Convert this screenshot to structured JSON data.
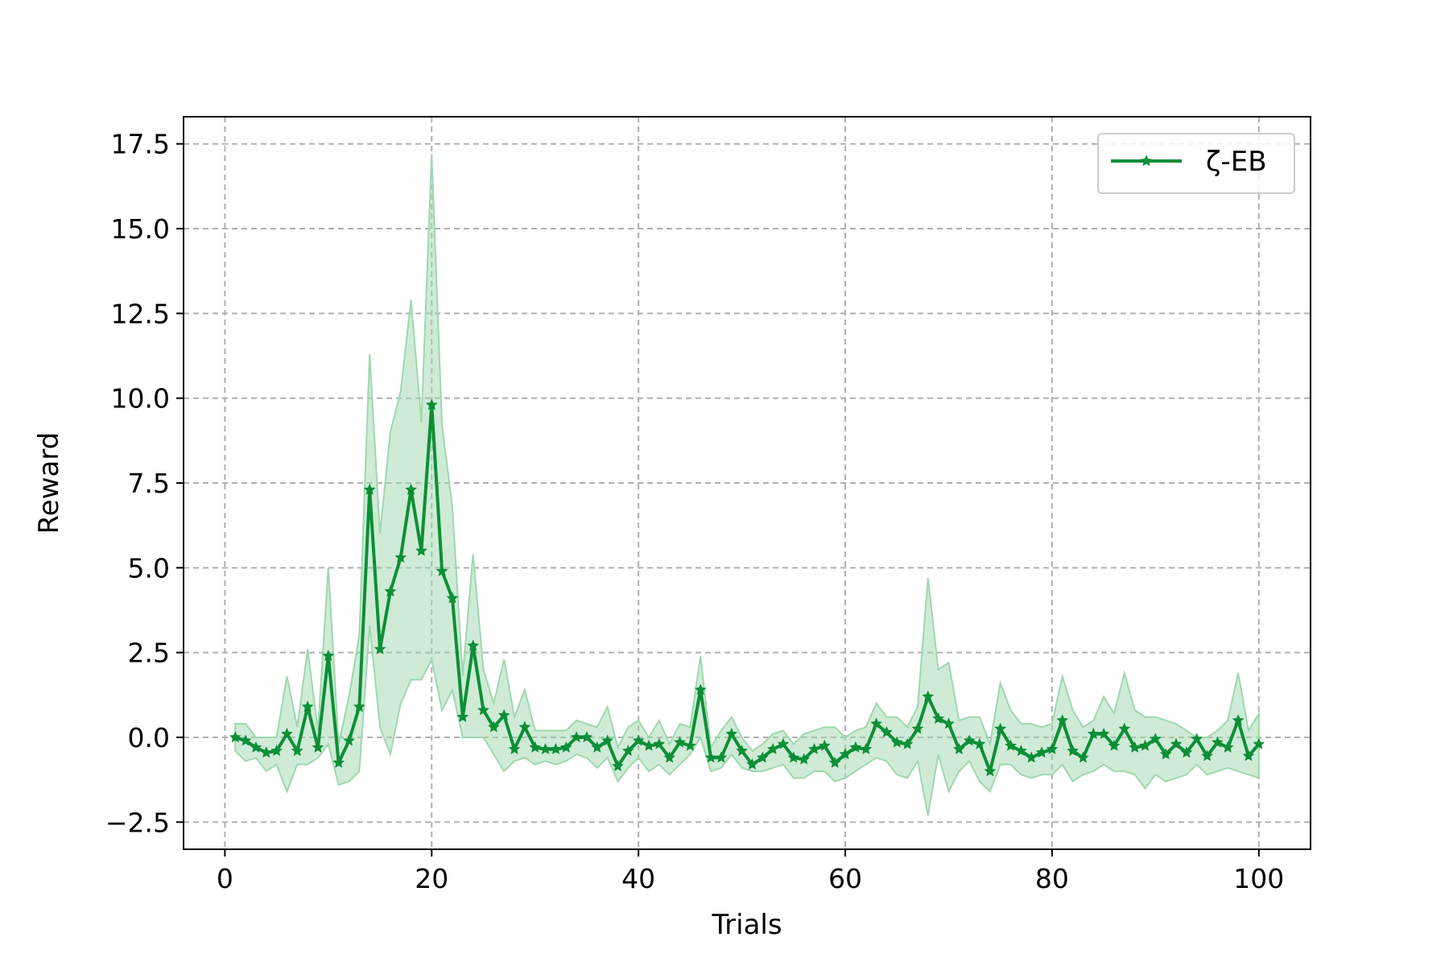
{
  "chart_data": {
    "type": "line",
    "title": "",
    "xlabel": "Trials",
    "ylabel": "Reward",
    "xlim": [
      -4,
      105
    ],
    "ylim": [
      -3.3,
      18.3
    ],
    "xticks": [
      0,
      20,
      40,
      60,
      80,
      100
    ],
    "xtick_labels": [
      "0",
      "20",
      "40",
      "60",
      "80",
      "100"
    ],
    "yticks": [
      -2.5,
      0.0,
      2.5,
      5.0,
      7.5,
      10.0,
      12.5,
      15.0,
      17.5
    ],
    "ytick_labels": [
      "−2.5",
      "0.0",
      "2.5",
      "5.0",
      "7.5",
      "10.0",
      "12.5",
      "15.0",
      "17.5"
    ],
    "grid": true,
    "legend_position": "top-right",
    "series": [
      {
        "name": "ζ-EB",
        "color": "#0c8f36",
        "band_color": "#9fd8ad",
        "marker": "star",
        "x": [
          1,
          2,
          3,
          4,
          5,
          6,
          7,
          8,
          9,
          10,
          11,
          12,
          13,
          14,
          15,
          16,
          17,
          18,
          19,
          20,
          21,
          22,
          23,
          24,
          25,
          26,
          27,
          28,
          29,
          30,
          31,
          32,
          33,
          34,
          35,
          36,
          37,
          38,
          39,
          40,
          41,
          42,
          43,
          44,
          45,
          46,
          47,
          48,
          49,
          50,
          51,
          52,
          53,
          54,
          55,
          56,
          57,
          58,
          59,
          60,
          61,
          62,
          63,
          64,
          65,
          66,
          67,
          68,
          69,
          70,
          71,
          72,
          73,
          74,
          75,
          76,
          77,
          78,
          79,
          80,
          81,
          82,
          83,
          84,
          85,
          86,
          87,
          88,
          89,
          90,
          91,
          92,
          93,
          94,
          95,
          96,
          97,
          98,
          99,
          100
        ],
        "y": [
          0.0,
          -0.1,
          -0.3,
          -0.45,
          -0.4,
          0.1,
          -0.4,
          0.9,
          -0.3,
          2.4,
          -0.75,
          -0.1,
          0.9,
          7.3,
          2.6,
          4.3,
          5.3,
          7.3,
          5.5,
          9.8,
          4.9,
          4.1,
          0.6,
          2.7,
          0.8,
          0.3,
          0.65,
          -0.35,
          0.3,
          -0.3,
          -0.35,
          -0.35,
          -0.3,
          0.0,
          0.0,
          -0.3,
          -0.1,
          -0.85,
          -0.4,
          -0.1,
          -0.25,
          -0.2,
          -0.6,
          -0.15,
          -0.25,
          1.4,
          -0.6,
          -0.6,
          0.1,
          -0.4,
          -0.8,
          -0.6,
          -0.35,
          -0.2,
          -0.6,
          -0.65,
          -0.35,
          -0.25,
          -0.75,
          -0.5,
          -0.3,
          -0.35,
          0.4,
          0.15,
          -0.15,
          -0.2,
          0.25,
          1.2,
          0.55,
          0.4,
          -0.35,
          -0.1,
          -0.2,
          -1.0,
          0.25,
          -0.25,
          -0.4,
          -0.6,
          -0.45,
          -0.35,
          0.5,
          -0.4,
          -0.6,
          0.1,
          0.1,
          -0.25,
          0.25,
          -0.3,
          -0.25,
          -0.05,
          -0.5,
          -0.2,
          -0.45,
          -0.05,
          -0.55,
          -0.15,
          -0.3,
          0.5,
          -0.55,
          -0.2
        ],
        "upper": [
          0.4,
          0.4,
          0.0,
          0.0,
          0.0,
          1.8,
          0.3,
          2.6,
          0.2,
          5.0,
          -0.2,
          1.2,
          3.0,
          11.3,
          6.0,
          9.0,
          10.2,
          12.9,
          9.3,
          17.2,
          9.2,
          6.8,
          1.8,
          5.4,
          2.0,
          1.0,
          2.3,
          0.6,
          1.4,
          0.2,
          0.2,
          0.2,
          0.2,
          0.5,
          0.4,
          0.3,
          0.9,
          -0.3,
          0.3,
          0.5,
          0.0,
          0.5,
          -0.2,
          0.4,
          0.3,
          2.4,
          -0.3,
          0.2,
          0.6,
          0.0,
          -0.4,
          -0.2,
          0.1,
          0.2,
          -0.2,
          0.1,
          0.2,
          0.3,
          0.3,
          0.0,
          0.2,
          0.3,
          1.0,
          0.6,
          0.6,
          0.3,
          0.9,
          4.7,
          2.0,
          2.2,
          0.5,
          0.6,
          0.6,
          -0.2,
          1.6,
          0.8,
          0.4,
          0.4,
          0.3,
          0.4,
          1.8,
          0.8,
          0.3,
          0.5,
          1.2,
          0.7,
          1.9,
          0.8,
          0.6,
          0.6,
          0.5,
          0.4,
          0.2,
          0.0,
          0.0,
          0.2,
          0.5,
          1.9,
          0.2,
          0.7
        ],
        "lower": [
          -0.4,
          -0.7,
          -0.6,
          -1.0,
          -0.8,
          -1.6,
          -0.8,
          -0.8,
          -0.6,
          -0.2,
          -1.4,
          -1.3,
          -1.0,
          3.3,
          0.3,
          -0.5,
          1.0,
          1.7,
          1.7,
          2.3,
          0.8,
          1.4,
          0.0,
          0.0,
          0.0,
          -0.5,
          -1.0,
          -0.7,
          -0.6,
          -0.8,
          -0.7,
          -0.8,
          -0.7,
          -0.5,
          -0.6,
          -0.9,
          -0.6,
          -1.3,
          -0.9,
          -0.6,
          -1.0,
          -0.8,
          -1.1,
          -0.8,
          -0.5,
          0.0,
          -1.0,
          -0.9,
          -0.5,
          -0.9,
          -1.0,
          -1.0,
          -0.9,
          -0.8,
          -1.2,
          -1.2,
          -1.0,
          -1.0,
          -1.3,
          -1.2,
          -1.0,
          -0.8,
          -0.6,
          -0.7,
          -1.1,
          -1.2,
          -0.7,
          -2.3,
          -0.5,
          -1.6,
          -1.0,
          -0.7,
          -1.3,
          -1.6,
          -0.8,
          -0.8,
          -1.1,
          -1.2,
          -1.1,
          -1.1,
          -0.8,
          -1.3,
          -1.1,
          -1.0,
          -0.8,
          -1.0,
          -1.0,
          -1.1,
          -1.5,
          -1.1,
          -1.3,
          -1.2,
          -1.1,
          -0.8,
          -1.1,
          -1.0,
          -0.9,
          -1.0,
          -1.1,
          -1.2
        ]
      }
    ]
  }
}
